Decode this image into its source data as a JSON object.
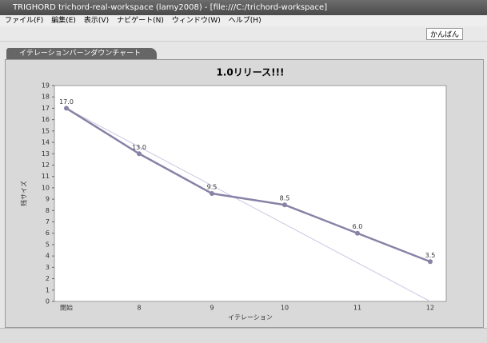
{
  "window": {
    "title": "TRIGHORD trichord-real-workspace (lamy2008) - [file:///C:/trichord-workspace]"
  },
  "menu": [
    "ファイル(F)",
    "編集(E)",
    "表示(V)",
    "ナビゲート(N)",
    "ウィンドウ(W)",
    "ヘルプ(H)"
  ],
  "toolbar": {
    "perspective": "かんばん"
  },
  "tab": {
    "title": "イテレーションバーンダウンチャート"
  },
  "chart_data": {
    "type": "line",
    "title": "1.0リリース!!!",
    "x_label": "イテレーション",
    "y_label": "残サイズ",
    "categories": [
      "開始",
      "8",
      "9",
      "10",
      "11",
      "12"
    ],
    "series": [
      {
        "color": "#8a82a6",
        "values": [
          17,
          13,
          9.5,
          8.5,
          6,
          3.5
        ],
        "value_labels": [
          "17.0",
          "13.0",
          "9.5",
          "8.5",
          "6.0",
          "3.5"
        ],
        "markers": true
      },
      {
        "color": "#cdc6e0",
        "values": [
          17,
          13.6,
          10.2,
          6.8,
          3.4,
          0
        ],
        "markers": false
      }
    ],
    "ylim": [
      0,
      19
    ],
    "yticks": [
      0,
      1,
      2,
      3,
      4,
      5,
      6,
      7,
      8,
      9,
      10,
      11,
      12,
      13,
      14,
      15,
      16,
      17,
      18,
      19
    ],
    "grid": false
  }
}
